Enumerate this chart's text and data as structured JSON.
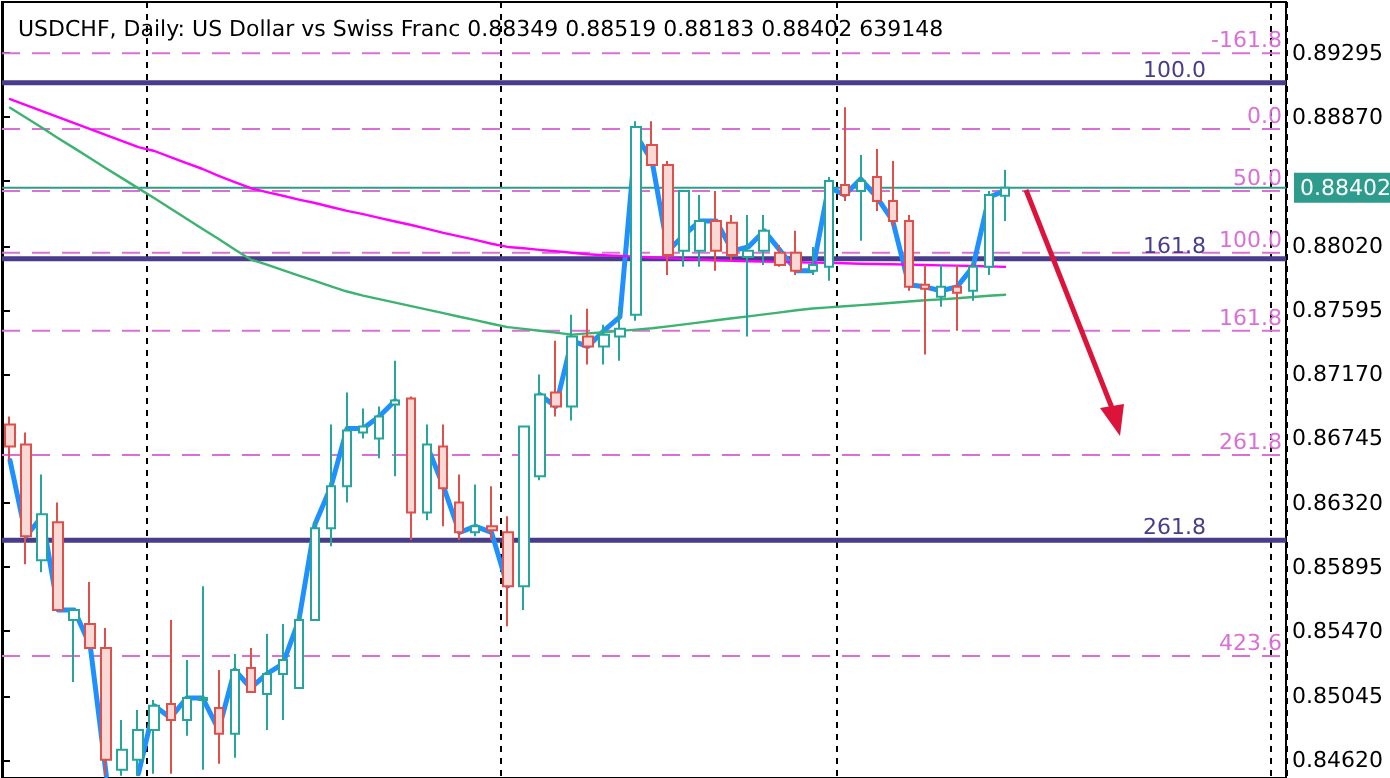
{
  "chart_data": {
    "type": "candlestick",
    "title": "USDCHF, Daily: US Dollar vs Swiss Franc 0.88349 0.88519 0.88183 0.88402 639148",
    "categories": [
      null,
      null,
      null,
      null,
      null,
      null,
      null,
      null,
      null,
      null,
      null,
      null,
      null,
      null,
      null,
      null,
      null,
      null,
      null,
      null,
      null,
      null,
      null,
      null,
      null,
      null,
      null,
      null,
      null,
      null,
      null,
      null,
      null,
      null,
      null,
      null,
      null,
      null,
      null,
      null,
      null,
      null,
      null,
      null,
      null,
      null,
      null,
      null,
      null,
      null,
      null,
      null,
      null,
      null,
      null,
      null,
      null,
      null,
      null,
      null,
      null,
      null,
      null
    ],
    "ohlc": [
      [
        0.86837,
        0.8689,
        0.86599,
        0.86692
      ],
      [
        0.86705,
        0.86784,
        0.85913,
        0.86098
      ],
      [
        0.8594,
        0.86507,
        0.85861,
        0.86243
      ],
      [
        0.8619,
        0.86322,
        0.8561,
        0.8561
      ],
      [
        0.85544,
        0.8561,
        0.85135,
        0.8561
      ],
      [
        0.85518,
        0.85795,
        0.85359,
        0.85359
      ],
      [
        0.85359,
        0.85491,
        0.84515,
        0.8462
      ],
      [
        0.84554,
        0.84884,
        0.84515,
        0.84686
      ],
      [
        0.8462,
        0.8495,
        0.84515,
        0.84818
      ],
      [
        0.84818,
        0.85016,
        0.84528,
        0.84977
      ],
      [
        0.8499,
        0.85544,
        0.84528,
        0.84884
      ],
      [
        0.84884,
        0.8528,
        0.84779,
        0.85029
      ],
      [
        0.85016,
        0.85768,
        0.84554,
        0.85029
      ],
      [
        0.84963,
        0.85214,
        0.84594,
        0.84792
      ],
      [
        0.84792,
        0.8532,
        0.84634,
        0.85214
      ],
      [
        0.85227,
        0.85359,
        0.85069,
        0.85069
      ],
      [
        0.85056,
        0.85452,
        0.84818,
        0.85188
      ],
      [
        0.85188,
        0.85518,
        0.84884,
        0.8528
      ],
      [
        0.85095,
        0.85584,
        0.85095,
        0.85544
      ],
      [
        0.85544,
        0.86204,
        0.85544,
        0.86151
      ],
      [
        0.86151,
        0.86837,
        0.86032,
        0.86428
      ],
      [
        0.86428,
        0.87048,
        0.86322,
        0.86797
      ],
      [
        0.86784,
        0.86943,
        0.86745,
        0.86824
      ],
      [
        0.86745,
        0.86956,
        0.86613,
        0.8689
      ],
      [
        0.86969,
        0.87259,
        0.86494,
        0.86995
      ],
      [
        0.87008,
        0.87022,
        0.86072,
        0.86256
      ],
      [
        0.86256,
        0.86837,
        0.86204,
        0.86705
      ],
      [
        0.86692,
        0.86837,
        0.86164,
        0.86415
      ],
      [
        0.86322,
        0.86507,
        0.86072,
        0.86124
      ],
      [
        0.86124,
        0.86441,
        0.86098,
        0.86164
      ],
      [
        0.86164,
        0.86428,
        0.86072,
        0.86138
      ],
      [
        0.86124,
        0.8623,
        0.85504,
        0.85768
      ],
      [
        0.85768,
        0.86824,
        0.8561,
        0.86824
      ],
      [
        0.86494,
        0.87167,
        0.86468,
        0.87035
      ],
      [
        0.87048,
        0.87391,
        0.8689,
        0.86956
      ],
      [
        0.86956,
        0.87563,
        0.86863,
        0.87418
      ],
      [
        0.87418,
        0.87602,
        0.87233,
        0.87352
      ],
      [
        0.87352,
        0.87497,
        0.87233,
        0.87431
      ],
      [
        0.87418,
        0.87615,
        0.87259,
        0.8747
      ],
      [
        0.87563,
        0.88842,
        0.87523,
        0.88803
      ],
      [
        0.88684,
        0.88842,
        0.88552,
        0.88552
      ],
      [
        0.88552,
        0.88579,
        0.87826,
        0.87958
      ],
      [
        0.87985,
        0.88381,
        0.87879,
        0.88381
      ],
      [
        0.87985,
        0.88354,
        0.87879,
        0.88183
      ],
      [
        0.88183,
        0.88381,
        0.87853,
        0.87985
      ],
      [
        0.8817,
        0.88222,
        0.87919,
        0.87958
      ],
      [
        0.87945,
        0.88222,
        0.87418,
        0.87985
      ],
      [
        0.87985,
        0.88222,
        0.87892,
        0.88117
      ],
      [
        0.87972,
        0.88024,
        0.87879,
        0.87892
      ],
      [
        0.87972,
        0.88117,
        0.87826,
        0.87853
      ],
      [
        0.87853,
        0.88011,
        0.87826,
        0.87892
      ],
      [
        0.87879,
        0.88473,
        0.87787,
        0.88447
      ],
      [
        0.8842,
        0.88935,
        0.88315,
        0.88354
      ],
      [
        0.88381,
        0.88618,
        0.88051,
        0.88447
      ],
      [
        0.88473,
        0.88658,
        0.88249,
        0.88315
      ],
      [
        0.88315,
        0.88579,
        0.88143,
        0.88183
      ],
      [
        0.88183,
        0.88222,
        0.87721,
        0.87747
      ],
      [
        0.87761,
        0.87892,
        0.87299,
        0.87734
      ],
      [
        0.87681,
        0.87892,
        0.87615,
        0.87747
      ],
      [
        0.87747,
        0.87892,
        0.87457,
        0.87708
      ],
      [
        0.87721,
        0.87919,
        0.87655,
        0.87879
      ],
      [
        0.87879,
        0.88381,
        0.87826,
        0.88354
      ],
      [
        0.88349,
        0.88519,
        0.88183,
        0.88402
      ]
    ],
    "series": [
      {
        "type": "line",
        "color": "#1e90ff",
        "values": [
          0.86599,
          0.86098,
          0.8623,
          0.8561,
          0.8561,
          0.85372,
          0.84515,
          null,
          0.84528,
          0.84977,
          0.84897,
          0.85029,
          0.85029,
          0.84818,
          0.85214,
          0.85095,
          0.85188,
          0.85254,
          0.85544,
          0.86177,
          0.86428,
          0.86811,
          0.86811,
          0.8689,
          0.86995,
          null,
          0.86692,
          0.86428,
          0.86124,
          0.86164,
          0.86124,
          0.85768,
          null,
          0.87035,
          0.86956,
          0.87391,
          0.87352,
          0.87457,
          0.87549,
          0.8875,
          0.88579,
          0.87985,
          0.8809,
          0.88183,
          0.88183,
          0.87985,
          0.88011,
          0.88117,
          0.87985,
          0.87853,
          0.87853,
          0.88407,
          0.88354,
          0.8846,
          0.88341,
          0.88183,
          0.87761,
          0.87747,
          0.87721,
          0.87747,
          0.87879,
          0.88341,
          0.88381
        ]
      },
      {
        "type": "line",
        "color": "#ff00ff",
        "values": [
          0.88988,
          0.88948,
          0.88908,
          0.88869,
          0.88829,
          0.8879,
          0.8875,
          0.88711,
          0.88671,
          0.88645,
          0.88605,
          0.88565,
          0.88526,
          0.8848,
          0.8844,
          0.88399,
          0.88373,
          0.88349,
          0.88324,
          0.88301,
          0.88275,
          0.88249,
          0.88228,
          0.88203,
          0.88179,
          0.88156,
          0.8813,
          0.88104,
          0.88081,
          0.88057,
          0.88032,
          0.88011,
          0.88002,
          0.87991,
          0.87982,
          0.87972,
          0.87962,
          0.87956,
          0.87952,
          0.87947,
          0.87941,
          0.87937,
          0.87932,
          0.87928,
          0.87923,
          0.87919,
          0.87916,
          0.87914,
          0.87912,
          0.8791,
          0.87907,
          0.87906,
          0.87903,
          0.879,
          0.87898,
          0.87896,
          0.87894,
          0.87891,
          0.87889,
          0.87887,
          0.87885,
          0.87882,
          0.87879
        ]
      },
      {
        "type": "line",
        "color": "#3cb371",
        "values": [
          0.88931,
          0.88865,
          0.88798,
          0.8873,
          0.88664,
          0.88597,
          0.8853,
          0.88464,
          0.88398,
          0.88333,
          0.88265,
          0.88197,
          0.8813,
          0.88063,
          0.87994,
          0.87927,
          0.87894,
          0.87858,
          0.87821,
          0.87786,
          0.8775,
          0.87716,
          0.87689,
          0.87666,
          0.87643,
          0.87619,
          0.87596,
          0.87573,
          0.87549,
          0.87527,
          0.87503,
          0.87481,
          0.87469,
          0.87457,
          0.87444,
          0.87431,
          0.87439,
          0.87447,
          0.87456,
          0.87464,
          0.87473,
          0.87486,
          0.87499,
          0.87512,
          0.87526,
          0.87539,
          0.87552,
          0.87565,
          0.87578,
          0.87592,
          0.87604,
          0.87611,
          0.87619,
          0.87626,
          0.87634,
          0.87642,
          0.8765,
          0.87658,
          0.87664,
          0.87672,
          0.8768,
          0.87688,
          0.87695
        ]
      }
    ],
    "ylim": [
      0.845,
      0.8963
    ],
    "yticks": [
      0.89295,
      {
        "value": 0.8887,
        "label": "0.88870"
      },
      {
        "value": 0.88445,
        "label": null
      },
      {
        "value": 0.8802,
        "label": "0.88020"
      },
      0.87595,
      {
        "value": 0.8717,
        "label": "0.87170"
      },
      0.86745,
      {
        "value": 0.8632,
        "label": "0.86320"
      },
      0.85895,
      {
        "value": 0.8547,
        "label": "0.85470"
      },
      0.85045,
      {
        "value": 0.8462,
        "label": "0.84620"
      }
    ],
    "ref_lines": [
      {
        "axis": "y",
        "value": 0.89291,
        "color": "#da70d6",
        "line_style": "dashed"
      },
      {
        "axis": "y",
        "value": 0.89097,
        "color": "#483d8b",
        "line_style": "solid"
      },
      {
        "axis": "y",
        "value": 0.8879,
        "color": "#da70d6",
        "line_style": "dashed"
      },
      {
        "axis": "y",
        "value": 0.88381,
        "color": "#da70d6",
        "line_style": "dashed"
      },
      {
        "axis": "y",
        "value": 0.88402,
        "label": "0.88402",
        "color": "#2e9c8c",
        "line_style": "solid"
      },
      {
        "axis": "y",
        "value": 0.87972,
        "color": "#da70d6",
        "line_style": "dashed"
      },
      {
        "axis": "y",
        "value": 0.87932,
        "color": "#483d8b",
        "line_style": "solid"
      },
      {
        "axis": "y",
        "value": 0.87457,
        "color": "#da70d6",
        "line_style": "dashed"
      },
      {
        "axis": "y",
        "value": 0.86635,
        "color": "#da70d6",
        "line_style": "dashed"
      },
      {
        "axis": "y",
        "value": 0.86072,
        "color": "#483d8b",
        "line_style": "solid"
      },
      {
        "axis": "y",
        "value": 0.85306,
        "color": "#da70d6",
        "line_style": "dashed"
      }
    ],
    "annotations": [
      {
        "text": "-161.8",
        "y": 0.89291
      },
      {
        "text": "100.0",
        "y": 0.89097
      },
      {
        "text": "0.0",
        "y": 0.8879
      },
      {
        "text": "50.0",
        "y": 0.88381
      },
      {
        "text": "100.0",
        "y": 0.87972
      },
      {
        "text": "161.8",
        "y": 0.87932
      },
      {
        "text": "161.8",
        "y": 0.87457
      },
      {
        "text": "261.8",
        "y": 0.86635
      },
      {
        "text": "261.8",
        "y": 0.86072
      },
      {
        "text": "423.6",
        "y": 0.85306
      }
    ],
    "grid": "x",
    "tick_labels": "y"
  }
}
